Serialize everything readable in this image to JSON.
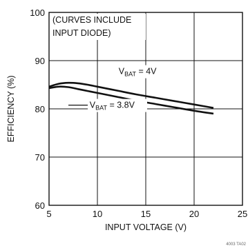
{
  "chart_data": {
    "type": "line",
    "title": "",
    "xlabel": "INPUT VOLTAGE (V)",
    "ylabel": "EFFICIENCY (%)",
    "xlim": [
      5,
      25
    ],
    "ylim": [
      60,
      100
    ],
    "xticks": [
      5,
      10,
      15,
      20,
      25
    ],
    "yticks": [
      60,
      70,
      80,
      90,
      100
    ],
    "grid": true,
    "annotations": {
      "note_line1": "(CURVES INCLUDE",
      "note_line2": "INPUT DIODE)",
      "series_label_4v_prefix": "V",
      "series_label_4v_sub": "BAT",
      "series_label_4v_suffix": " = 4V",
      "series_label_38v_prefix": "V",
      "series_label_38v_sub": "BAT",
      "series_label_38v_suffix": " = 3.8V",
      "corner_code": "4003 TA02"
    },
    "series": [
      {
        "x": [
          5,
          6,
          7,
          8,
          9,
          10,
          12,
          14,
          16,
          18,
          20,
          22
        ],
        "values": [
          84.6,
          85.2,
          85.4,
          85.3,
          85.0,
          84.6,
          83.8,
          83.0,
          82.3,
          81.6,
          80.9,
          80.2
        ]
      },
      {
        "x": [
          5,
          6,
          7,
          8,
          9,
          10,
          12,
          14,
          16,
          18,
          20,
          22
        ],
        "values": [
          84.3,
          84.6,
          84.5,
          84.1,
          83.7,
          83.3,
          82.5,
          81.7,
          81.0,
          80.3,
          79.6,
          79.0
        ]
      }
    ]
  }
}
